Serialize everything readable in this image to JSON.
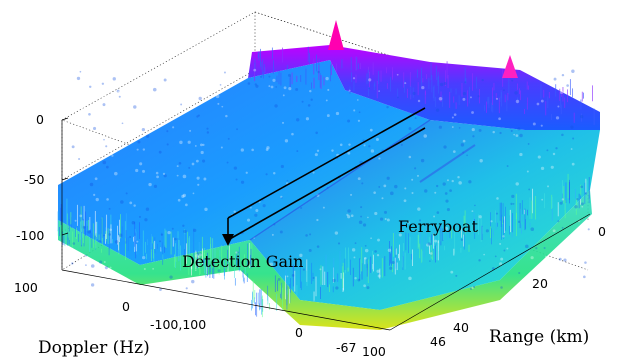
{
  "chart_data": {
    "type": "surface",
    "colormap": "jet",
    "xlabel": "Doppler (Hz)",
    "ylabel": "Range (km)",
    "x_ticks": [
      "100",
      "0",
      "-100,100",
      "0",
      "-67",
      "100"
    ],
    "y_ticks": [
      "0",
      "20",
      "40",
      "46"
    ],
    "z_ticks": [
      "0",
      "-50",
      "-100"
    ],
    "zlim": [
      -125,
      5
    ],
    "ylim": [
      0,
      46
    ],
    "noise_floor_db": -80,
    "peaks": [
      {
        "range_km": 0,
        "value_db": 0
      },
      {
        "range_km": 0,
        "value_db": -1
      }
    ],
    "annotations": [
      {
        "id": "ferryboat",
        "text": "Ferryboat"
      },
      {
        "id": "detection_gain",
        "text": "Detection Gain"
      }
    ],
    "grid": true
  }
}
